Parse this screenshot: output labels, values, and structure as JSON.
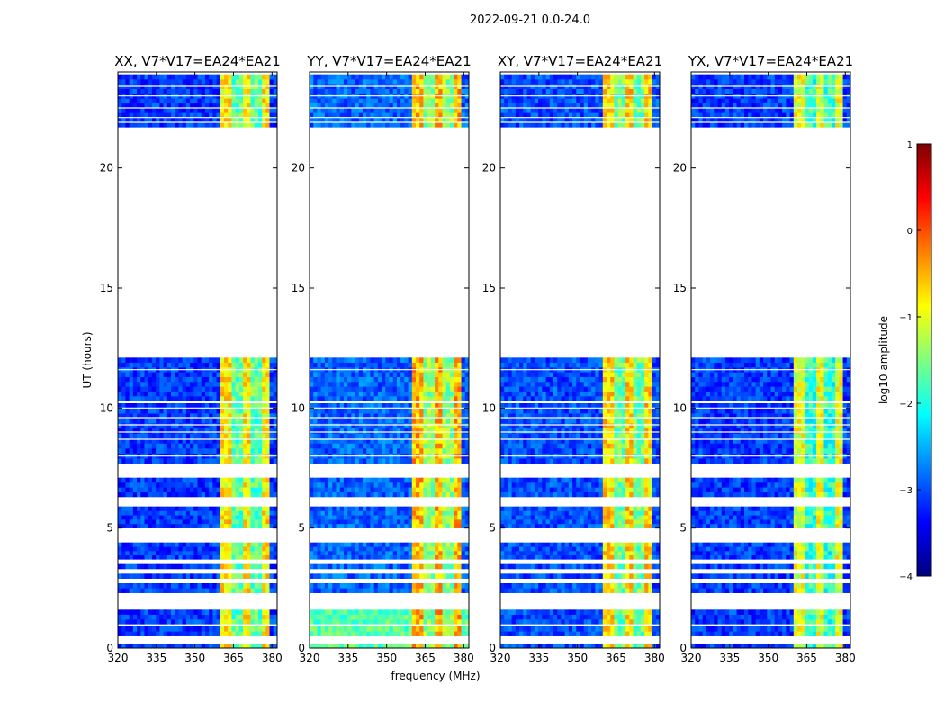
{
  "figure": {
    "suptitle": "2022-09-21 0.0-24.0",
    "xlabel": "frequency (MHz)",
    "ylabel": "UT (hours)"
  },
  "chart_data": {
    "type": "heatmap",
    "colormap": "jet",
    "x_range": [
      320,
      382
    ],
    "y_range": [
      0,
      24
    ],
    "x_ticks": [
      "320",
      "335",
      "350",
      "365",
      "380"
    ],
    "x_tick_values": [
      320,
      335,
      350,
      365,
      380
    ],
    "y_ticks": [
      "0",
      "5",
      "10",
      "15",
      "20"
    ],
    "y_tick_values": [
      0,
      5,
      10,
      15,
      20
    ],
    "panels": [
      {
        "title": "XX, V7*V17=EA24*EA21",
        "rfi_band_mhz": [
          360.5,
          379.5
        ],
        "rfi_level": -0.8,
        "background_level": -3.1
      },
      {
        "title": "YY, V7*V17=EA24*EA21",
        "rfi_band_mhz": [
          360.5,
          379.5
        ],
        "rfi_level": -0.5,
        "background_level": -2.9
      },
      {
        "title": "XY, V7*V17=EA24*EA21",
        "rfi_band_mhz": [
          360.5,
          379.5
        ],
        "rfi_level": -0.7,
        "background_level": -3.0
      },
      {
        "title": "YX, V7*V17=EA24*EA21",
        "rfi_band_mhz": [
          360.5,
          379.5
        ],
        "rfi_level": -1.0,
        "background_level": -3.1
      }
    ],
    "data_segments_ut_hours": [
      [
        0.0,
        0.15
      ],
      [
        0.5,
        0.9
      ],
      [
        1.0,
        1.6
      ],
      [
        2.3,
        2.7
      ],
      [
        2.9,
        3.1
      ],
      [
        3.3,
        3.5
      ],
      [
        3.7,
        4.4
      ],
      [
        5.0,
        5.9
      ],
      [
        6.3,
        7.1
      ],
      [
        7.7,
        10.2
      ],
      [
        10.3,
        12.1
      ],
      [
        21.7,
        23.9
      ]
    ],
    "flag_lines_ut_hours": [
      7.5,
      8.0,
      8.7,
      9.0,
      9.3,
      9.6,
      10.0,
      11.6,
      21.9,
      22.1,
      22.5,
      23.0,
      23.4
    ]
  },
  "colorbar": {
    "label": "log10 amplitude",
    "ticks": [
      "1",
      "0",
      "−1",
      "−2",
      "−3",
      "−4"
    ],
    "tick_values": [
      1,
      0,
      -1,
      -2,
      -3,
      -4
    ],
    "range": [
      -4,
      1
    ]
  }
}
